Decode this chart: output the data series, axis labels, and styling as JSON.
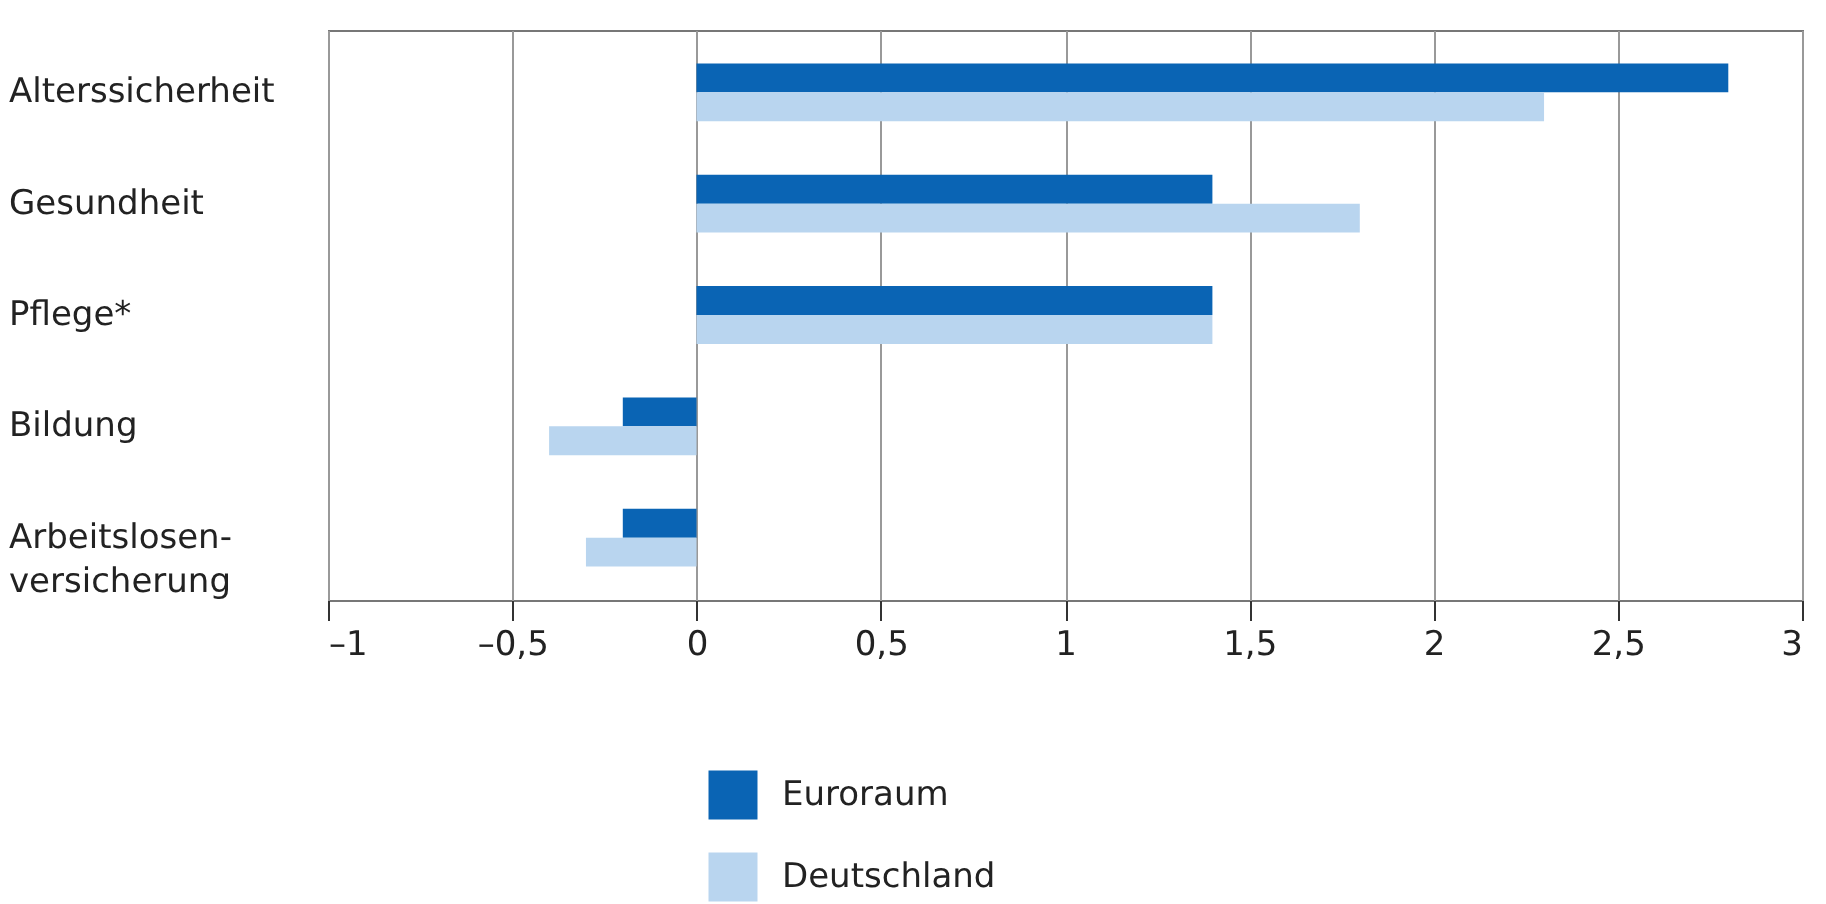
{
  "chart_data": {
    "type": "bar",
    "orientation": "horizontal",
    "categories": [
      "Alterssicherheit",
      "Gesundheit",
      "Pflege*",
      "Bildung",
      "Arbeitslosen-\nversicherung"
    ],
    "series": [
      {
        "name": "Euroraum",
        "color": "#0a64b4",
        "values": [
          2.8,
          1.4,
          1.4,
          -0.2,
          -0.2
        ]
      },
      {
        "name": "Deutschland",
        "color": "#b9d5ef",
        "values": [
          2.3,
          1.8,
          1.4,
          -0.4,
          -0.3
        ]
      }
    ],
    "xlim": [
      -1,
      3
    ],
    "xticks": [
      {
        "value": -1,
        "label": "–1"
      },
      {
        "value": -0.5,
        "label": "–0,5"
      },
      0,
      {
        "value": 0.5,
        "label": "0,5"
      },
      1,
      {
        "value": 1.5,
        "label": "1,5"
      },
      2,
      {
        "value": 2.5,
        "label": "2,5"
      },
      3
    ],
    "grid": "x",
    "legend": "bottom"
  }
}
